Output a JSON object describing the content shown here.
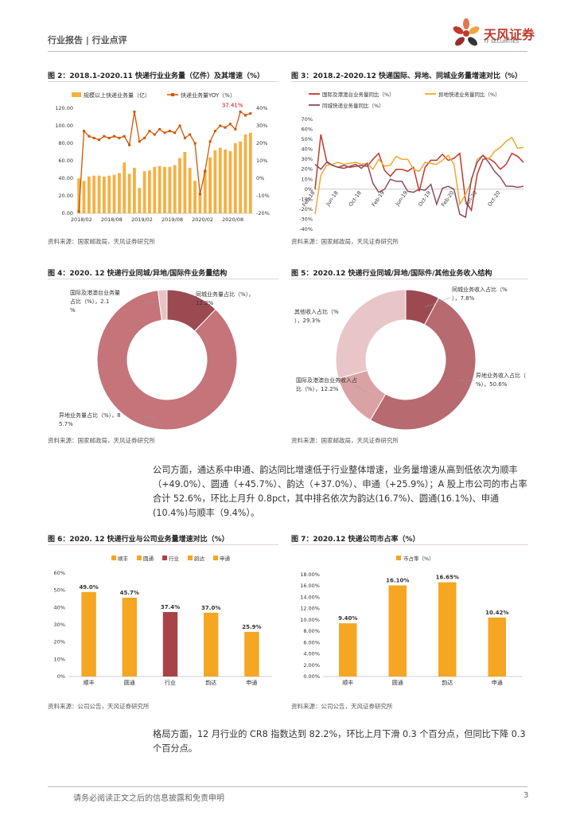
{
  "header": {
    "label": "行业报告 | 行业点评"
  },
  "logo": {
    "name": "天风证券",
    "subtitle": "TF SECURITIES"
  },
  "fig2": {
    "title": "图 2：2018.1-2020.11 快递行业业务量（亿件）及其增速（%）",
    "source": "资料来源：国家邮政局，天风证券研究所",
    "chart_data": {
      "type": "bar",
      "legend": [
        "规模以上快递业务量（亿）",
        "快递业务量YOY（%）"
      ],
      "x_ticks": [
        "2018/02",
        "2018/08",
        "2019/02",
        "2019/08",
        "2020/02",
        "2020/08"
      ],
      "y_left_ticks": [
        "120.00",
        "100.00",
        "80.00",
        "60.00",
        "40.00",
        "20.00",
        "0.00"
      ],
      "y_right_ticks": [
        "40%",
        "30%",
        "20%",
        "10%",
        "0%",
        "-10%",
        "-20%"
      ],
      "ylim_left": [
        0,
        120
      ],
      "ylim_right": [
        -20,
        40
      ],
      "bars": [
        40,
        37,
        42,
        43,
        43,
        42,
        43,
        44,
        46,
        58,
        45,
        52,
        29,
        48,
        49,
        53,
        54,
        53,
        53,
        55,
        63,
        70,
        52,
        37,
        23,
        50,
        64,
        72,
        75,
        73,
        71,
        80,
        82,
        90,
        92
      ],
      "yoy": [
        -19,
        27,
        24,
        23,
        22,
        24,
        23,
        24,
        23,
        24,
        19,
        38,
        21,
        23,
        27,
        25,
        28,
        26,
        27,
        26,
        30,
        23,
        25,
        20,
        -9,
        4,
        21,
        27,
        30,
        29,
        31,
        28,
        38,
        36,
        37
      ],
      "annotation": "37.41%"
    }
  },
  "fig3": {
    "title": "图 3：2018.2-2020.12 快递国际、异地、同城业务量增速对比（%）",
    "source": "资料来源：国家邮政局，天风证券研究所",
    "chart_data": {
      "type": "line",
      "legend": [
        "国际及港澳台业务量同比（%）",
        "异地快递业务量同比（%）",
        "同城快递业务量同比（%）"
      ],
      "colors": [
        "#c0392b",
        "#f0a830",
        "#8e4a5a"
      ],
      "x_ticks": [
        "Feb-18",
        "Jun-18",
        "Oct-18",
        "Feb-19",
        "Jun-19",
        "Oct-19",
        "Feb-20",
        "Jun-20",
        "Oct-20"
      ],
      "y_ticks": [
        "70%",
        "60%",
        "50%",
        "40%",
        "30%",
        "20%",
        "10%",
        "0%",
        "-10%",
        "-20%",
        "-30%",
        "-40%"
      ],
      "ylim": [
        -40,
        70
      ],
      "series": [
        {
          "values": [
            0,
            55,
            28,
            24,
            22,
            24,
            22,
            23,
            24,
            23,
            30,
            36,
            19,
            13,
            20,
            20,
            18,
            22,
            -2,
            22,
            29,
            29,
            35,
            29,
            31,
            36,
            -12,
            -21,
            15,
            30,
            31,
            27,
            20,
            25,
            36,
            33,
            27
          ]
        },
        {
          "values": [
            -25,
            14,
            24,
            25,
            27,
            25,
            26,
            27,
            25,
            26,
            20,
            30,
            23,
            24,
            33,
            30,
            30,
            20,
            18,
            27,
            26,
            25,
            29,
            34,
            25,
            -15,
            -5,
            8,
            30,
            34,
            30,
            38,
            42,
            48,
            52,
            41,
            42
          ]
        },
        {
          "values": [
            25,
            20,
            27,
            24,
            22,
            21,
            23,
            25,
            21,
            26,
            6,
            -3,
            0,
            10,
            8,
            8,
            -2,
            -3,
            0,
            -1,
            5,
            -15,
            1,
            3,
            0,
            -25,
            -28,
            10,
            27,
            34,
            27,
            18,
            12,
            3,
            3,
            2,
            3
          ]
        }
      ]
    }
  },
  "fig4": {
    "title": "图 4：2020. 12 快递行业同城/异地/国际件业务量结构",
    "source": "资料来源：国家邮政局，天风证券研究所",
    "chart_data": {
      "type": "pie",
      "slices": [
        {
          "label": "同城业务量占比（%），12.2%",
          "value": 12.2,
          "color": "#9b4a52"
        },
        {
          "label": "异地业务量占比（%），85.7%",
          "value": 85.7,
          "color": "#c57479"
        },
        {
          "label": "国际及港澳台业务量占比（%），2.1%",
          "value": 2.1,
          "color": "#e8c3c3"
        }
      ]
    }
  },
  "fig5": {
    "title": "图 5：2020.12 快递行业同城/异地/国际件/其他业务收入结构",
    "source": "资料来源：国家邮政局，天风证券研究所",
    "chart_data": {
      "type": "pie",
      "slices": [
        {
          "label": "同城业务收入占比（%），7.8%",
          "value": 7.8,
          "color": "#9b4a52"
        },
        {
          "label": "异地业务收入占比（%），50.6%",
          "value": 50.6,
          "color": "#b76a70"
        },
        {
          "label": "国际及港澳台业务收入占比（%），12.2%",
          "value": 12.2,
          "color": "#d9a3a6"
        },
        {
          "label": "其他收入占比（%），29.3%",
          "value": 29.3,
          "color": "#e8c6c7"
        }
      ]
    }
  },
  "para1": "公司方面，通达系中申通、韵达同比增速低于行业整体增速，业务量增速从高到低依次为顺丰（+49.0%）、圆通（+45.7%）、韵达（+37.0%）、申通（+25.9%）；A 股上市公司的市占率合计 52.6%，环比上月升 0.8pct，其中排名依次为韵达(16.7%)、圆通(16.1%)、申通(10.4%)与顺丰（9.4%）。",
  "fig6": {
    "title": "图 6：2020. 12 快递行业与公司业务量增速对比（%）",
    "source": "资料来源：公司公告，天风证券研究所",
    "chart_data": {
      "type": "bar",
      "legend": [
        "顺丰",
        "圆通",
        "行业",
        "韵达",
        "申通"
      ],
      "categories": [
        "顺丰",
        "圆通",
        "行业",
        "韵达",
        "申通"
      ],
      "values": [
        49.0,
        45.7,
        37.4,
        37.0,
        25.9
      ],
      "value_labels": [
        "49.0%",
        "45.7%",
        "37.4%",
        "37.0%",
        "25.9%"
      ],
      "colors": [
        "#f5a623",
        "#f5a623",
        "#a84448",
        "#f5a623",
        "#f5a623"
      ],
      "y_ticks": [
        "60%",
        "50%",
        "40%",
        "30%",
        "20%",
        "10%",
        "0%"
      ],
      "ylim": [
        0,
        60
      ]
    }
  },
  "fig7": {
    "title": "图 7：2020.12 快递公司市占率（%）",
    "source": "资料来源：公司公告，天风证券研究所",
    "chart_data": {
      "type": "bar",
      "legend": [
        "市占率（%）"
      ],
      "categories": [
        "顺丰",
        "圆通",
        "韵达",
        "申通"
      ],
      "values": [
        9.4,
        16.1,
        16.65,
        10.42
      ],
      "value_labels": [
        "9.40%",
        "16.10%",
        "16.65%",
        "10.42%"
      ],
      "y_ticks": [
        "18.00%",
        "16.00%",
        "14.00%",
        "12.00%",
        "10.00%",
        "8.00%",
        "6.00%",
        "4.00%",
        "2.00%",
        "0.00%"
      ],
      "ylim": [
        0,
        18
      ]
    }
  },
  "para2": "格局方面，12 月行业的 CR8 指数达到 82.2%，环比上月下滑 0.3 个百分点，但同比下降 0.3 个百分点。",
  "footer": {
    "disclaimer": "请务必阅读正文之后的信息披露和免责申明",
    "page": "3"
  }
}
